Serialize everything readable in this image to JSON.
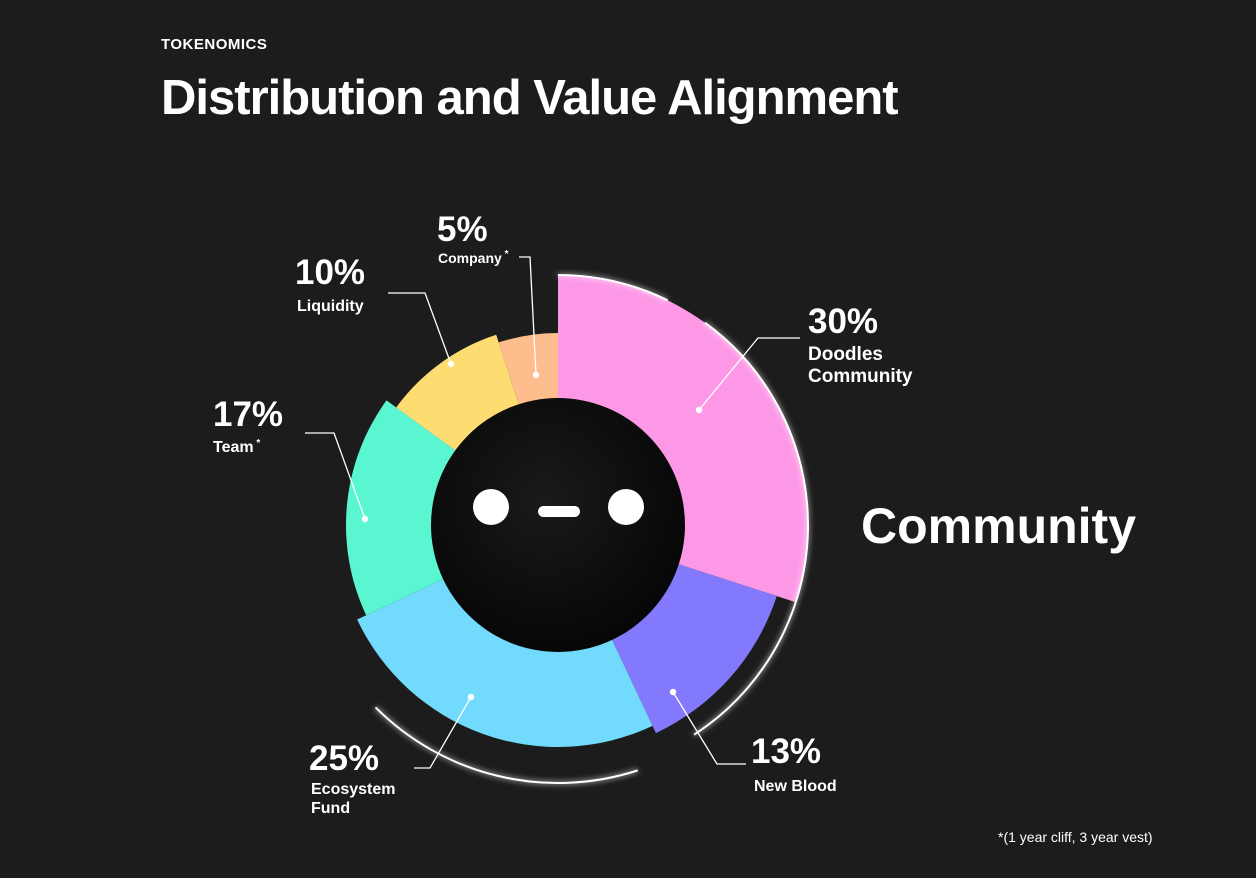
{
  "header": {
    "eyebrow": "TOKENOMICS",
    "title": "Distribution and Value Alignment"
  },
  "chart_data": {
    "type": "pie",
    "title": "Distribution and Value Alignment",
    "slices": [
      {
        "label": "Doodles Community",
        "lines": [
          "Doodles",
          "Community"
        ],
        "value": 30,
        "pct_text": "30%",
        "color": "#fd98e6",
        "footnote_star": false
      },
      {
        "label": "New Blood",
        "lines": [
          "New Blood"
        ],
        "value": 13,
        "pct_text": "13%",
        "color": "#8379fd",
        "footnote_star": false
      },
      {
        "label": "Ecosystem Fund",
        "lines": [
          "Ecosystem",
          "Fund"
        ],
        "value": 25,
        "pct_text": "25%",
        "color": "#72dafd",
        "footnote_star": false
      },
      {
        "label": "Team",
        "lines": [
          "Team"
        ],
        "value": 17,
        "pct_text": "17%",
        "color": "#5af6d2",
        "footnote_star": true
      },
      {
        "label": "Liquidity",
        "lines": [
          "Liquidity"
        ],
        "value": 10,
        "pct_text": "10%",
        "color": "#fddc72",
        "footnote_star": false
      },
      {
        "label": "Company",
        "lines": [
          "Company"
        ],
        "value": 5,
        "pct_text": "5%",
        "color": "#fdbd8c",
        "footnote_star": true
      }
    ],
    "group_annotation": "Community",
    "footnote_marker": "*",
    "footnote": "*(1 year cliff, 3 year vest)"
  }
}
